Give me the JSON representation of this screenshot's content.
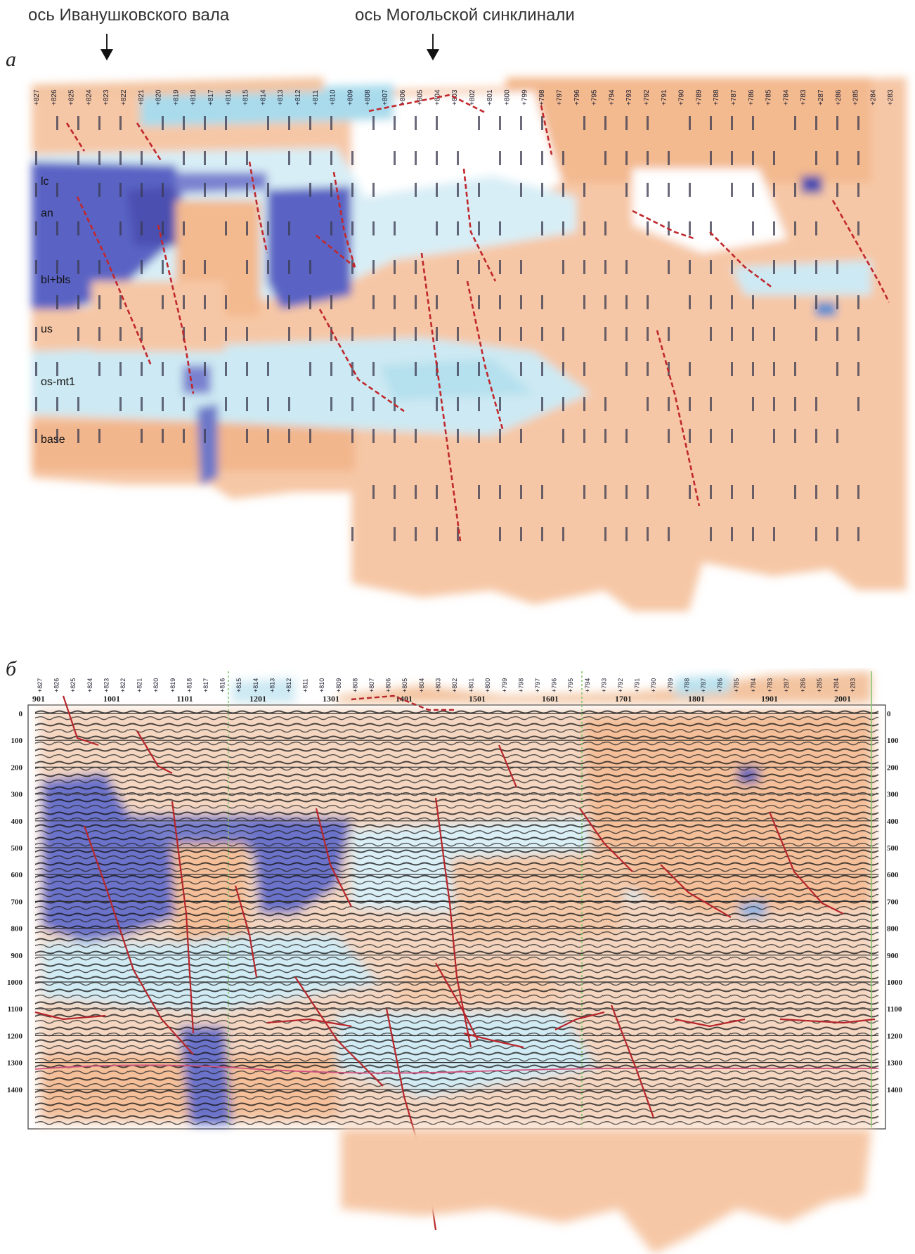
{
  "captions": {
    "axis_ivanushkov": "ось Иванушковского вала",
    "axis_mogol": "ось Могольской синклинали"
  },
  "panels": {
    "a": "а",
    "b": "б"
  },
  "layers": [
    "lc",
    "an",
    "bl+bls",
    "us",
    "os-mt1",
    "base"
  ],
  "traces": [
    "901",
    "1001",
    "1101",
    "1201",
    "1301",
    "1401",
    "1501",
    "1601",
    "1701",
    "1801",
    "1901",
    "2001"
  ],
  "depths": [
    "0",
    "100",
    "200",
    "300",
    "400",
    "500",
    "600",
    "700",
    "800",
    "900",
    "1000",
    "1100",
    "1200",
    "1300",
    "1400"
  ],
  "stations_top": [
    "827",
    "826",
    "825",
    "824",
    "823",
    "822",
    "821",
    "820",
    "819",
    "818",
    "817",
    "816",
    "815",
    "814",
    "813",
    "812",
    "811",
    "810",
    "809",
    "808",
    "807",
    "806",
    "805",
    "804",
    "803",
    "802",
    "801",
    "800",
    "799",
    "798",
    "797",
    "796",
    "795",
    "794",
    "793",
    "792",
    "791",
    "790",
    "789",
    "788",
    "787",
    "786",
    "785",
    "784",
    "783",
    "287",
    "286",
    "285",
    "284",
    "283"
  ],
  "colors": {
    "orange": "#f3b98f",
    "light_orange": "#f9d9c2",
    "light_blue": "#c5e6f1",
    "cyan": "#8fd0e6",
    "blue": "#5a63c4",
    "dark_blue": "#4b4fb0",
    "fault": "#c0282d"
  }
}
